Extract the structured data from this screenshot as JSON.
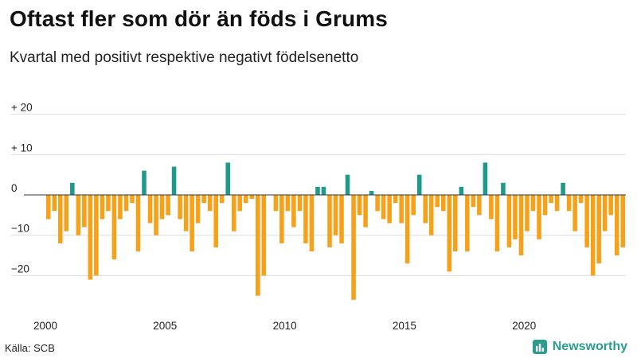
{
  "title": "Oftast fler som dör än föds i Grums",
  "subtitle": "Kvartal med positivt respektive negativt födelsenetto",
  "source": "Källa: SCB",
  "brand": "Newsworthy",
  "colors": {
    "positive": "#1f9a8a",
    "negative": "#f5a11a",
    "grid": "#dddddd",
    "baseline": "#333333",
    "brand": "#2a9d8f"
  },
  "chart_data": {
    "type": "bar",
    "title": "Oftast fler som dör än föds i Grums",
    "subtitle": "Kvartal med positivt respektive negativt födelsenetto",
    "xlabel": "",
    "ylabel": "",
    "ylim": [
      -27,
      22
    ],
    "yticks": [
      {
        "value": 20,
        "label": "+ 20"
      },
      {
        "value": 10,
        "label": "+ 10"
      },
      {
        "value": 0,
        "label": "0"
      },
      {
        "value": -10,
        "label": "−10"
      },
      {
        "value": -20,
        "label": "−20"
      }
    ],
    "xticks": [
      "2000",
      "2005",
      "2010",
      "2015",
      "2020"
    ],
    "start_year": 2000,
    "periods_per_year": 4,
    "values": [
      -6,
      -4,
      -12,
      -9,
      3,
      -10,
      -8,
      -21,
      -20,
      -6,
      -4,
      -16,
      -6,
      -4,
      -2,
      -14,
      6,
      -7,
      -10,
      -6,
      -5,
      7,
      -6,
      -9,
      -14,
      -7,
      -2,
      -4,
      -13,
      -2,
      8,
      -9,
      -4,
      -2,
      -1,
      -25,
      -20,
      0,
      -4,
      -12,
      -4,
      -8,
      -4,
      -12,
      -14,
      2,
      2,
      -13,
      -10,
      -12,
      5,
      -26,
      -5,
      -8,
      1,
      -4,
      -6,
      -7,
      -2,
      -7,
      -17,
      -5,
      5,
      -7,
      -10,
      -3,
      -4,
      -19,
      -14,
      2,
      -14,
      -3,
      -5,
      8,
      -6,
      -14,
      3,
      -13,
      -11,
      -15,
      -9,
      -4,
      -11,
      -5,
      -2,
      -4,
      3,
      -4,
      -9,
      -2,
      -13,
      -20,
      -17,
      -9,
      -5,
      -15,
      -13
    ]
  }
}
